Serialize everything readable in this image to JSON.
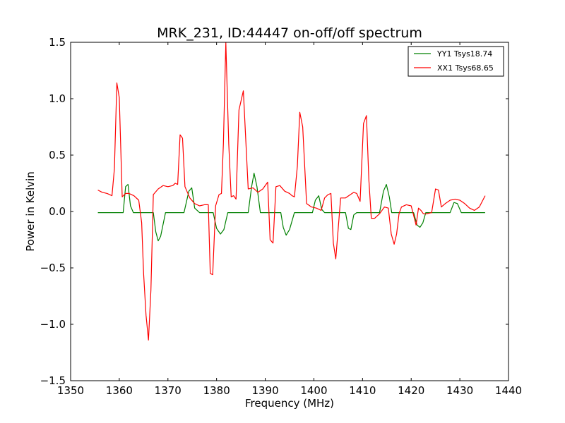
{
  "chart_data": {
    "type": "line",
    "title": "MRK_231, ID:44447 on-off/off spectrum",
    "xlabel": "Frequency (MHz)",
    "ylabel": "Power in Kelvin",
    "xlim": [
      1350,
      1440
    ],
    "ylim": [
      -1.5,
      1.5
    ],
    "xticks": [
      1350,
      1360,
      1370,
      1380,
      1390,
      1400,
      1410,
      1420,
      1430,
      1440
    ],
    "yticks": [
      -1.5,
      -1.0,
      -0.5,
      0.0,
      0.5,
      1.0,
      1.5
    ],
    "xtick_labels": [
      "1350",
      "1360",
      "1370",
      "1380",
      "1390",
      "1400",
      "1410",
      "1420",
      "1430",
      "1440"
    ],
    "ytick_labels": [
      "−1.5",
      "−1.0",
      "−0.5",
      "0.0",
      "0.5",
      "1.0",
      "1.5"
    ],
    "grid": false,
    "legend_position": "top-right",
    "series": [
      {
        "name": "YY1 Tsys18.74",
        "color": "#008000",
        "x": [
          1355.6,
          1356.5,
          1357.5,
          1358.5,
          1359.3,
          1360.0,
          1360.8,
          1361.3,
          1361.8,
          1362.3,
          1362.9,
          1363.5,
          1364.5,
          1365.5,
          1366.5,
          1367.0,
          1367.5,
          1368.0,
          1368.5,
          1369.5,
          1370.5,
          1371.5,
          1372.5,
          1373.3,
          1374.3,
          1374.9,
          1375.5,
          1376.5,
          1377.5,
          1378.5,
          1379.3,
          1380.0,
          1380.8,
          1381.5,
          1382.3,
          1383.3,
          1384.5,
          1385.5,
          1386.5,
          1387.2,
          1387.7,
          1388.3,
          1389.0,
          1390.0,
          1391.0,
          1392.0,
          1392.6,
          1393.2,
          1393.7,
          1394.3,
          1395.0,
          1396.0,
          1397.0,
          1398.0,
          1399.0,
          1399.7,
          1400.3,
          1401.0,
          1401.6,
          1402.2,
          1402.8,
          1403.5,
          1404.5,
          1405.5,
          1406.5,
          1407.1,
          1407.6,
          1408.2,
          1408.8,
          1409.5,
          1410.5,
          1411.5,
          1412.5,
          1413.5,
          1414.3,
          1414.9,
          1415.5,
          1416.0,
          1416.5,
          1417.5,
          1418.5,
          1419.5,
          1420.5,
          1421.2,
          1421.8,
          1422.4,
          1423.0,
          1424.0,
          1425.0,
          1426.0,
          1427.0,
          1428.0,
          1428.8,
          1429.5,
          1430.3,
          1431.0,
          1432.0,
          1433.0,
          1434.0,
          1435.2
        ],
        "y": [
          -0.01,
          -0.01,
          -0.01,
          -0.01,
          -0.01,
          -0.01,
          -0.01,
          0.22,
          0.24,
          0.05,
          -0.01,
          -0.01,
          -0.01,
          -0.01,
          -0.01,
          -0.01,
          -0.18,
          -0.26,
          -0.22,
          -0.01,
          -0.01,
          -0.01,
          -0.01,
          -0.01,
          0.18,
          0.21,
          0.03,
          -0.01,
          -0.01,
          -0.01,
          -0.01,
          -0.15,
          -0.2,
          -0.16,
          -0.01,
          -0.01,
          -0.01,
          -0.01,
          -0.01,
          0.22,
          0.34,
          0.22,
          -0.01,
          -0.01,
          -0.01,
          -0.01,
          -0.01,
          -0.01,
          -0.14,
          -0.21,
          -0.16,
          -0.01,
          -0.01,
          -0.01,
          -0.01,
          -0.01,
          0.1,
          0.14,
          0.02,
          -0.01,
          -0.01,
          -0.01,
          -0.01,
          -0.01,
          -0.01,
          -0.15,
          -0.16,
          -0.03,
          -0.01,
          -0.01,
          -0.01,
          -0.01,
          -0.01,
          -0.01,
          0.18,
          0.24,
          0.13,
          -0.01,
          -0.01,
          -0.01,
          -0.01,
          -0.01,
          -0.01,
          -0.12,
          -0.14,
          -0.1,
          -0.01,
          -0.01,
          -0.01,
          -0.01,
          -0.01,
          -0.01,
          0.08,
          0.07,
          -0.01,
          -0.01,
          -0.01,
          -0.01,
          -0.01,
          -0.01
        ]
      },
      {
        "name": "XX1 Tsys68.65",
        "color": "#ff0000",
        "x": [
          1355.6,
          1356.5,
          1357.5,
          1358.5,
          1359.0,
          1359.5,
          1360.0,
          1360.6,
          1361.3,
          1362.0,
          1363.0,
          1364.0,
          1364.6,
          1365.0,
          1365.5,
          1366.0,
          1366.5,
          1367.0,
          1368.0,
          1369.0,
          1370.0,
          1371.0,
          1371.5,
          1372.0,
          1372.5,
          1373.0,
          1373.5,
          1374.5,
          1375.5,
          1376.5,
          1377.5,
          1378.3,
          1378.7,
          1379.2,
          1379.8,
          1380.5,
          1381.0,
          1381.4,
          1381.9,
          1382.5,
          1383.0,
          1383.5,
          1384.0,
          1384.6,
          1385.5,
          1386.5,
          1387.5,
          1388.5,
          1389.5,
          1390.5,
          1391.0,
          1391.6,
          1392.2,
          1393.0,
          1394.0,
          1395.0,
          1395.5,
          1396.0,
          1396.6,
          1397.1,
          1397.7,
          1398.5,
          1399.5,
          1400.5,
          1401.5,
          1402.2,
          1402.9,
          1403.5,
          1404.0,
          1404.5,
          1405.5,
          1406.5,
          1407.5,
          1408.2,
          1408.8,
          1409.5,
          1410.2,
          1410.8,
          1411.3,
          1411.8,
          1412.5,
          1413.5,
          1414.5,
          1415.3,
          1415.9,
          1416.5,
          1417.0,
          1417.5,
          1418.0,
          1419.0,
          1420.0,
          1421.0,
          1421.5,
          1422.0,
          1422.5,
          1423.2,
          1424.2,
          1425.0,
          1425.6,
          1426.2,
          1427.0,
          1428.0,
          1429.0,
          1430.0,
          1431.0,
          1432.0,
          1433.0,
          1434.0,
          1435.2
        ],
        "y": [
          0.19,
          0.17,
          0.16,
          0.14,
          0.38,
          1.14,
          1.01,
          0.13,
          0.16,
          0.16,
          0.14,
          0.1,
          -0.1,
          -0.55,
          -0.92,
          -1.14,
          -0.7,
          0.15,
          0.2,
          0.23,
          0.22,
          0.23,
          0.25,
          0.24,
          0.68,
          0.65,
          0.22,
          0.12,
          0.07,
          0.05,
          0.06,
          0.06,
          -0.55,
          -0.56,
          0.05,
          0.15,
          0.16,
          0.6,
          1.5,
          0.6,
          0.13,
          0.14,
          0.11,
          0.9,
          1.07,
          0.2,
          0.21,
          0.17,
          0.2,
          0.26,
          -0.25,
          -0.28,
          0.22,
          0.23,
          0.18,
          0.16,
          0.14,
          0.13,
          0.4,
          0.88,
          0.75,
          0.07,
          0.04,
          0.03,
          0.01,
          0.12,
          0.15,
          0.16,
          -0.28,
          -0.42,
          0.12,
          0.12,
          0.15,
          0.17,
          0.16,
          0.09,
          0.78,
          0.85,
          0.28,
          -0.06,
          -0.06,
          -0.02,
          0.04,
          0.03,
          -0.2,
          -0.29,
          -0.2,
          -0.02,
          0.04,
          0.06,
          0.05,
          -0.12,
          0.03,
          0.01,
          -0.02,
          -0.02,
          -0.01,
          0.2,
          0.19,
          0.04,
          0.07,
          0.1,
          0.11,
          0.1,
          0.07,
          0.03,
          0.01,
          0.04,
          0.14
        ]
      }
    ]
  }
}
